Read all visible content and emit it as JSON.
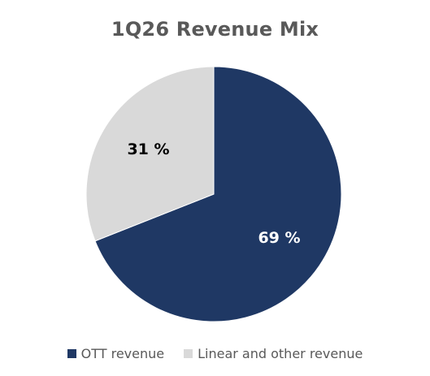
{
  "chart_data": {
    "type": "pie",
    "title": "1Q26 Revenue Mix",
    "slices": [
      {
        "name": "OTT revenue",
        "value": 69,
        "label": "69 %",
        "color": "#1f3864",
        "label_color": "#ffffff"
      },
      {
        "name": "Linear and other revenue",
        "value": 31,
        "label": "31 %",
        "color": "#d9d9d9",
        "label_color": "#000000"
      }
    ],
    "legend_position": "bottom"
  }
}
